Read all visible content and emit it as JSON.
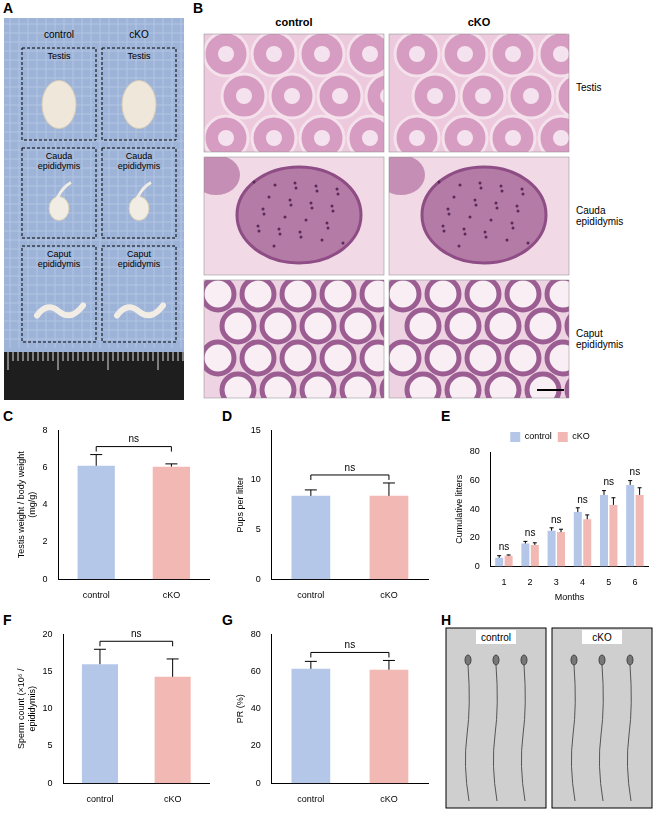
{
  "chart_data": [
    {
      "panel": "C",
      "type": "bar",
      "categories": [
        "control",
        "cKO"
      ],
      "values": [
        6.1,
        6.05
      ],
      "error": [
        0.6,
        0.15
      ],
      "colors": [
        "#b4c7e9",
        "#f2b8b3"
      ],
      "y_label": "Testis weight / body weight (mg/g)",
      "ylim": [
        0,
        8
      ],
      "yticks": [
        0,
        2,
        4,
        6,
        8
      ],
      "grid": false,
      "annotations": [
        "ns"
      ]
    },
    {
      "panel": "D",
      "type": "bar",
      "categories": [
        "control",
        "cKO"
      ],
      "values": [
        8.4,
        8.4
      ],
      "error": [
        0.6,
        1.3
      ],
      "colors": [
        "#b4c7e9",
        "#f2b8b3"
      ],
      "y_label": "Pups per litter",
      "ylim": [
        0,
        15
      ],
      "yticks": [
        0,
        5,
        10,
        15
      ],
      "grid": false,
      "annotations": [
        "ns"
      ]
    },
    {
      "panel": "E",
      "type": "bar",
      "categories": [
        "1",
        "2",
        "3",
        "4",
        "5",
        "6"
      ],
      "x_label": "Months",
      "y_label": "Cumulative litters",
      "series": [
        {
          "name": "control",
          "color": "#b4c7e9",
          "values": [
            6,
            16,
            25,
            38,
            50,
            57
          ],
          "error": [
            1.5,
            1.5,
            2,
            3,
            3,
            3
          ]
        },
        {
          "name": "cKO",
          "color": "#f2b8b3",
          "values": [
            7.5,
            15,
            24,
            33,
            43,
            50
          ],
          "error": [
            0.5,
            1.5,
            2,
            3,
            5,
            5
          ]
        }
      ],
      "legend": "top",
      "ylim": [
        0,
        80
      ],
      "yticks": [
        0,
        20,
        40,
        60,
        80
      ],
      "grid": false,
      "annotations": [
        "ns",
        "ns",
        "ns",
        "ns",
        "ns",
        "ns"
      ]
    },
    {
      "panel": "F",
      "type": "bar",
      "categories": [
        "control",
        "cKO"
      ],
      "values": [
        16,
        14.3
      ],
      "error": [
        2,
        2.4
      ],
      "colors": [
        "#b4c7e9",
        "#f2b8b3"
      ],
      "y_label": "Sperm count (×10⁶ / epididymis)",
      "ylim": [
        0,
        20
      ],
      "yticks": [
        0,
        5,
        10,
        15,
        20
      ],
      "grid": false,
      "annotations": [
        "ns"
      ]
    },
    {
      "panel": "G",
      "type": "bar",
      "categories": [
        "control",
        "cKO"
      ],
      "values": [
        61.5,
        61
      ],
      "error": [
        4,
        5
      ],
      "colors": [
        "#b4c7e9",
        "#f2b8b3"
      ],
      "y_label": "PR (%)",
      "ylim": [
        0,
        80
      ],
      "yticks": [
        0,
        20,
        40,
        60,
        80
      ],
      "grid": false,
      "annotations": [
        "ns"
      ]
    }
  ],
  "images": [
    {
      "panel": "A",
      "columns": [
        "control",
        "cKO"
      ],
      "rows": [
        "Testis",
        "Cauda epididymis",
        "Caput epididymis"
      ]
    },
    {
      "panel": "B",
      "columns": [
        "control",
        "cKO"
      ],
      "rows": [
        "Testis",
        "Cauda epididymis",
        "Caput epididymis"
      ]
    },
    {
      "panel": "H",
      "columns": [
        "control",
        "cKO"
      ]
    }
  ]
}
